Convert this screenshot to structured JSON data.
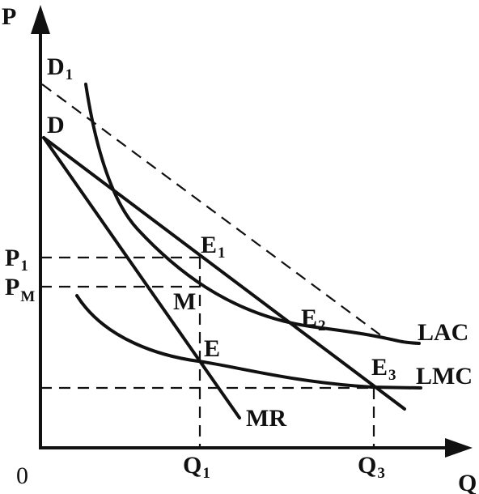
{
  "axes": {
    "y_label": "P",
    "x_label": "Q",
    "origin_label": "0"
  },
  "price_labels": {
    "p1": {
      "main": "P",
      "sub": "1"
    },
    "pm": {
      "main": "P",
      "sub": "M"
    }
  },
  "quantity_labels": {
    "q1": {
      "main": "Q",
      "sub": "1"
    },
    "q3": {
      "main": "Q",
      "sub": "3"
    }
  },
  "curve_labels": {
    "d1": {
      "main": "D",
      "sub": "1"
    },
    "d": "D",
    "mr": "MR",
    "lac": "LAC",
    "lmc": "LMC"
  },
  "point_labels": {
    "e1": {
      "main": "E",
      "sub": "1"
    },
    "e2": {
      "main": "E",
      "sub": "2"
    },
    "e3": {
      "main": "E",
      "sub": "3"
    },
    "e": "E",
    "m": "M"
  }
}
